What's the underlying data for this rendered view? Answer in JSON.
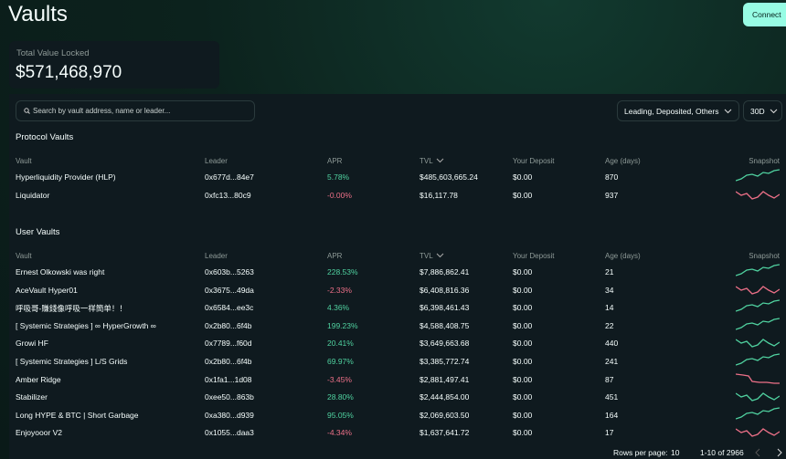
{
  "header": {
    "title": "Vaults",
    "connect": "Connect"
  },
  "tvl_card": {
    "label": "Total Value Locked",
    "value": "$571,468,970"
  },
  "search": {
    "placeholder": "Search by vault address, name or leader..."
  },
  "filter": "Leading, Deposited, Others",
  "period": "30D",
  "columns": [
    "Vault",
    "Leader",
    "APR",
    "TVL",
    "Your Deposit",
    "Age (days)",
    "Snapshot"
  ],
  "protocol_vaults": {
    "title": "Protocol Vaults",
    "rows": [
      [
        "Hyperliquidity Provider (HLP)",
        "0x677d...84e7",
        "5.78%",
        "$485,603,665.24",
        "$0.00",
        "870"
      ],
      [
        "Liquidator",
        "0xfc13...80c9",
        "-0.00%",
        "$16,117.78",
        "$0.00",
        "937"
      ]
    ]
  },
  "user_vaults": {
    "title": "User Vaults",
    "rows": [
      [
        "Ernest Olkowski was right",
        "0x603b...5263",
        "228.53%",
        "$7,886,862.41",
        "$0.00",
        "21"
      ],
      [
        "AceVault Hyper01",
        "0x3675...49da",
        "-2.33%",
        "$6,408,816.36",
        "$0.00",
        "34"
      ],
      [
        "呼吸哥-賺錢像呼吸一样簡单！！",
        "0x6584...ee3c",
        "4.36%",
        "$6,398,461.43",
        "$0.00",
        "14"
      ],
      [
        "[ Systemic Strategies ] ∞ HyperGrowth ∞",
        "0x2b80...6f4b",
        "199.23%",
        "$4,588,408.75",
        "$0.00",
        "22"
      ],
      [
        "Growi HF",
        "0x7789...f60d",
        "20.41%",
        "$3,649,663.68",
        "$0.00",
        "440"
      ],
      [
        "[ Systemic Strategies ] L/S Grids",
        "0x2b80...6f4b",
        "69.97%",
        "$3,385,772.74",
        "$0.00",
        "241"
      ],
      [
        "Amber Ridge",
        "0x1fa1...1d08",
        "-3.45%",
        "$2,881,497.41",
        "$0.00",
        "87"
      ],
      [
        "Stabilizer",
        "0xee50...863b",
        "28.80%",
        "$2,444,854.00",
        "$0.00",
        "451"
      ],
      [
        "Long HYPE & BTC | Short Garbage",
        "0xa380...d939",
        "95.05%",
        "$2,069,603.50",
        "$0.00",
        "164"
      ],
      [
        "Enjoyooor V2",
        "0x1055...daa3",
        "-4.34%",
        "$1,637,641.72",
        "$0.00",
        "17"
      ]
    ]
  },
  "pagination": {
    "rows_per_page_label": "Rows per page:",
    "rows_per_page": "10",
    "range": "1-10 of 2966"
  }
}
